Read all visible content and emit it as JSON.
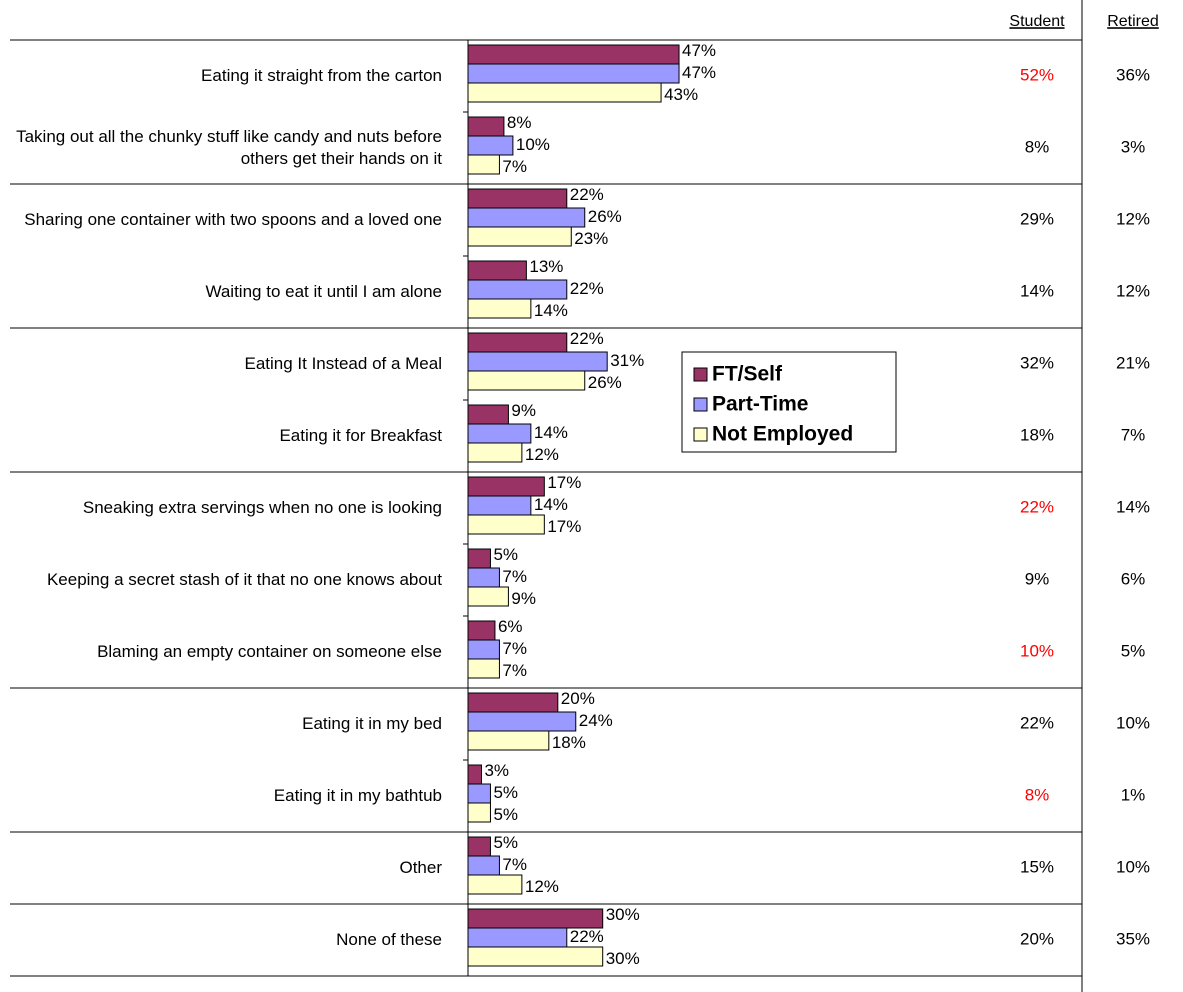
{
  "chart_data": {
    "type": "barh",
    "categories": [
      "Eating it straight from the carton",
      "Taking out all the chunky stuff like candy and nuts before others get their hands on it",
      "Sharing one container with two spoons and a loved one",
      "Waiting to eat it until I am alone",
      "Eating It Instead of a Meal",
      "Eating it for Breakfast",
      "Sneaking extra servings when no one is looking",
      "Keeping a secret stash of it that no one knows about",
      "Blaming an empty container on someone else",
      "Eating it in my bed",
      "Eating it in my bathtub",
      "Other",
      "None of these"
    ],
    "series": [
      {
        "name": "FT/Self",
        "color": "#993366",
        "values": [
          47,
          8,
          22,
          13,
          22,
          9,
          17,
          5,
          6,
          20,
          3,
          5,
          30
        ],
        "value_labels": [
          "47%",
          "8%",
          "22%",
          "13%",
          "22%",
          "9%",
          "17%",
          "5%",
          "6%",
          "20%",
          "3%",
          "5%",
          "30%"
        ]
      },
      {
        "name": "Part-Time",
        "color": "#9999ff",
        "values": [
          47,
          10,
          26,
          22,
          31,
          14,
          14,
          7,
          7,
          24,
          5,
          7,
          22
        ],
        "value_labels": [
          "47%",
          "10%",
          "26%",
          "22%",
          "31%",
          "14%",
          "14%",
          "7%",
          "7%",
          "24%",
          "5%",
          "7%",
          "22%"
        ]
      },
      {
        "name": "Not Employed",
        "color": "#ffffcc",
        "values": [
          43,
          7,
          23,
          14,
          26,
          12,
          17,
          9,
          7,
          18,
          5,
          12,
          30
        ],
        "value_labels": [
          "43%",
          "7%",
          "23%",
          "14%",
          "26%",
          "12%",
          "17%",
          "9%",
          "7%",
          "18%",
          "5%",
          "12%",
          "30%"
        ]
      }
    ],
    "xlim": [
      0,
      100
    ],
    "legend": "center"
  },
  "table": {
    "headers": [
      "Student",
      "Retired"
    ],
    "rows": [
      [
        "52%",
        "36%"
      ],
      [
        "8%",
        "3%"
      ],
      [
        "29%",
        "12%"
      ],
      [
        "14%",
        "12%"
      ],
      [
        "32%",
        "21%"
      ],
      [
        "18%",
        "7%"
      ],
      [
        "22%",
        "14%"
      ],
      [
        "9%",
        "6%"
      ],
      [
        "10%",
        "5%"
      ],
      [
        "22%",
        "10%"
      ],
      [
        "8%",
        "1%"
      ],
      [
        "15%",
        "10%"
      ],
      [
        "20%",
        "35%"
      ]
    ],
    "highlight_color": "#ff0000",
    "highlighted": [
      [
        0,
        0
      ],
      [
        6,
        0
      ],
      [
        8,
        0
      ],
      [
        10,
        0
      ]
    ]
  }
}
